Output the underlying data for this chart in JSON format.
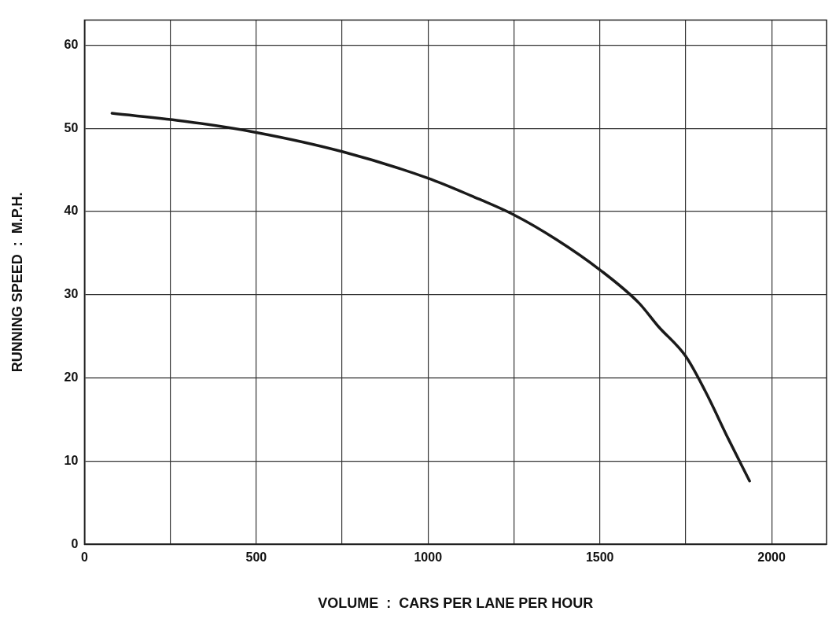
{
  "chart_data": {
    "type": "line",
    "xlabel": "VOLUME  :  CARS PER LANE PER HOUR",
    "ylabel": "RUNNING SPEED  :  M.P.H.",
    "x": [
      80,
      300,
      500,
      750,
      1000,
      1125,
      1250,
      1375,
      1500,
      1614,
      1670,
      1750,
      1807,
      1875,
      1936
    ],
    "series": [
      {
        "color": "#1a1a1a",
        "values": [
          51.8,
          50.8,
          49.5,
          47.2,
          44,
          41.9,
          39.6,
          36.6,
          33,
          29,
          26.2,
          22.6,
          18.4,
          12.6,
          7.6
        ]
      }
    ],
    "xlim": [
      0,
      2160
    ],
    "ylim": [
      0,
      63
    ],
    "xticks": [
      0,
      {
        "value": 250,
        "label": null
      },
      500,
      {
        "value": 750,
        "label": null
      },
      1000,
      {
        "value": 1250,
        "label": null
      },
      1500,
      {
        "value": 1750,
        "label": null
      },
      2000
    ],
    "yticks": [
      0,
      10,
      20,
      30,
      40,
      50,
      60
    ],
    "grid": true,
    "legend": false,
    "marker": "none",
    "line_style": "solid"
  }
}
